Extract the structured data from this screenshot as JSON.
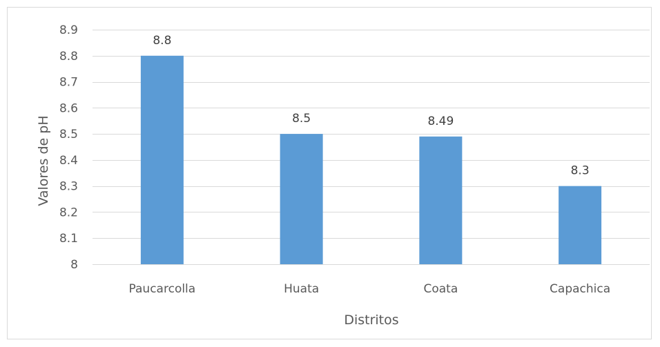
{
  "chart_data": {
    "type": "bar",
    "title": "",
    "xlabel": "Distritos",
    "ylabel": "Valores de pH",
    "categories": [
      "Paucarcolla",
      "Huata",
      "Coata",
      "Capachica"
    ],
    "values": [
      8.8,
      8.5,
      8.49,
      8.3
    ],
    "data_labels": [
      "8.8",
      "8.5",
      "8.49",
      "8.3"
    ],
    "ylim": [
      8,
      8.9
    ],
    "yticks": [
      8,
      8.1,
      8.2,
      8.3,
      8.4,
      8.5,
      8.6,
      8.7,
      8.8,
      8.9
    ],
    "ytick_labels": [
      "8",
      "8.1",
      "8.2",
      "8.3",
      "8.4",
      "8.5",
      "8.6",
      "8.7",
      "8.8",
      "8.9"
    ],
    "grid": true,
    "legend": "none",
    "bar_color": "#5b9bd5"
  }
}
